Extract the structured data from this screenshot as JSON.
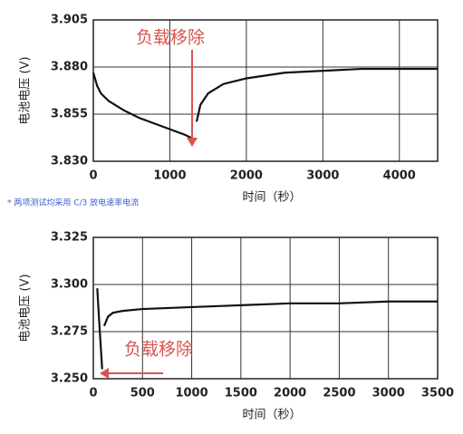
{
  "chart_data": [
    {
      "type": "line",
      "y_label": "电池电压 (V)",
      "x_label": "时间（秒）",
      "annotation": "负载移除",
      "annotation_color": "#d9534f",
      "footnote": "* 两项测试均采用 C/3 放电速率电流",
      "x": [
        0,
        50,
        100,
        200,
        400,
        600,
        800,
        1000,
        1200,
        1300,
        1300,
        1350,
        1400,
        1500,
        1700,
        2000,
        2500,
        3000,
        3500,
        4000,
        4500
      ],
      "series": [
        {
          "color": "#111111",
          "values": [
            3.877,
            3.87,
            3.866,
            3.862,
            3.857,
            3.853,
            3.85,
            3.847,
            3.844,
            3.842,
            null,
            3.851,
            3.86,
            3.866,
            3.871,
            3.874,
            3.877,
            3.878,
            3.879,
            3.879,
            3.879
          ]
        }
      ],
      "xlim": [
        0,
        4500
      ],
      "xticks": [
        0,
        1000,
        2000,
        3000,
        4000
      ],
      "ylim": [
        3.83,
        3.905
      ],
      "yticks": [
        {
          "value": 3.83,
          "label": "3.830"
        },
        {
          "value": 3.855,
          "label": "3.855"
        },
        {
          "value": 3.88,
          "label": "3.880"
        },
        {
          "value": 3.905,
          "label": "3.905"
        }
      ],
      "grid": true
    },
    {
      "type": "line",
      "y_label": "电池电压 (V)",
      "x_label": "时间（秒）",
      "annotation": "负载移除",
      "annotation_color": "#d9534f",
      "x": [
        40,
        60,
        90,
        90,
        110,
        150,
        200,
        300,
        500,
        1000,
        1500,
        2000,
        2500,
        3000,
        3500
      ],
      "series": [
        {
          "color": "#111111",
          "values": [
            3.298,
            3.28,
            3.255,
            null,
            3.278,
            3.283,
            3.285,
            3.286,
            3.287,
            3.288,
            3.289,
            3.29,
            3.29,
            3.291,
            3.291
          ]
        }
      ],
      "xlim": [
        0,
        3500
      ],
      "xticks": [
        0,
        500,
        1000,
        1500,
        2000,
        2500,
        3000,
        3500
      ],
      "ylim": [
        3.25,
        3.325
      ],
      "yticks": [
        {
          "value": 3.25,
          "label": "3.250"
        },
        {
          "value": 3.275,
          "label": "3.275"
        },
        {
          "value": 3.3,
          "label": "3.300"
        },
        {
          "value": 3.325,
          "label": "3.325"
        }
      ],
      "grid": true
    }
  ]
}
